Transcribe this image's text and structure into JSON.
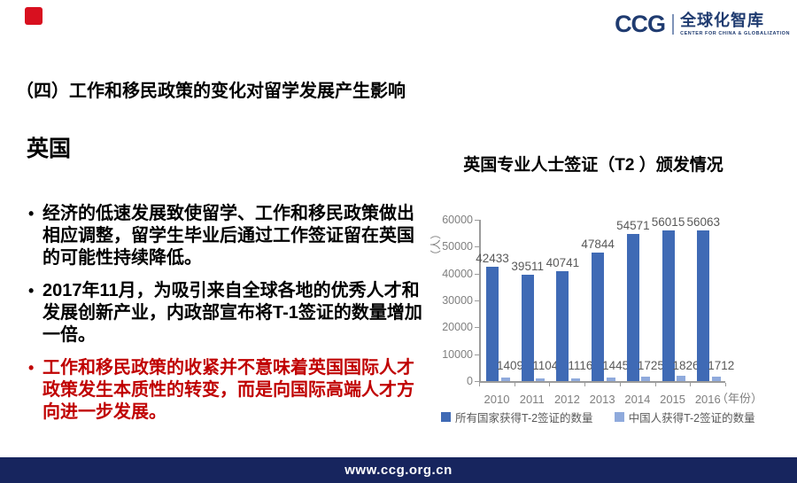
{
  "colors": {
    "accent_red": "#d8101f",
    "emphasis_red": "#c00000",
    "navy": "#17255e",
    "logo_navy": "#1f3b70",
    "axis_gray": "#9b9b9b",
    "label_gray": "#595959",
    "tick_gray": "#7f7f7f"
  },
  "logo": {
    "ccg": "CCG",
    "name_cn": "全球化智库",
    "name_en": "CENTER FOR CHINA & GLOBALIZATION"
  },
  "page_title": "（四）工作和移民政策的变化对留学发展产生影响",
  "section_title": "英国",
  "bullets": [
    {
      "text": "经济的低速发展致使留学、工作和移民政策做出相应调整，留学生毕业后通过工作签证留在英国的可能性持续降低。"
    },
    {
      "text": "2017年11月，为吸引来自全球各地的优秀人才和发展创新产业，内政部宣布将T-1签证的数量增加一倍。"
    },
    {
      "text": "工作和移民政策的收紧并不意味着英国国际人才政策发生本质性的转变，而是向国际高端人才方向进一步发展。"
    }
  ],
  "chart_data": {
    "type": "bar",
    "title": "英国专业人士签证（T2 ）颁发情况",
    "categories": [
      "2010",
      "2011",
      "2012",
      "2013",
      "2014",
      "2015",
      "2016"
    ],
    "series": [
      {
        "name": "所有国家获得T-2签证的数量",
        "color": "#3f6ab5",
        "values": [
          42433,
          39511,
          40741,
          47844,
          54571,
          56015,
          56063
        ]
      },
      {
        "name": "中国人获得T-2签证的数量",
        "color": "#8faadc",
        "values": [
          1409,
          1104,
          1116,
          1445,
          1725,
          1826,
          1712
        ]
      }
    ],
    "ylabel": "（人）",
    "xlabel": "（年份）",
    "ylim": [
      0,
      60000
    ],
    "ytick_step": 10000,
    "grid": false,
    "legend_position": "bottom",
    "value_labels": true
  },
  "footer": {
    "url": "www.ccg.org.cn"
  }
}
